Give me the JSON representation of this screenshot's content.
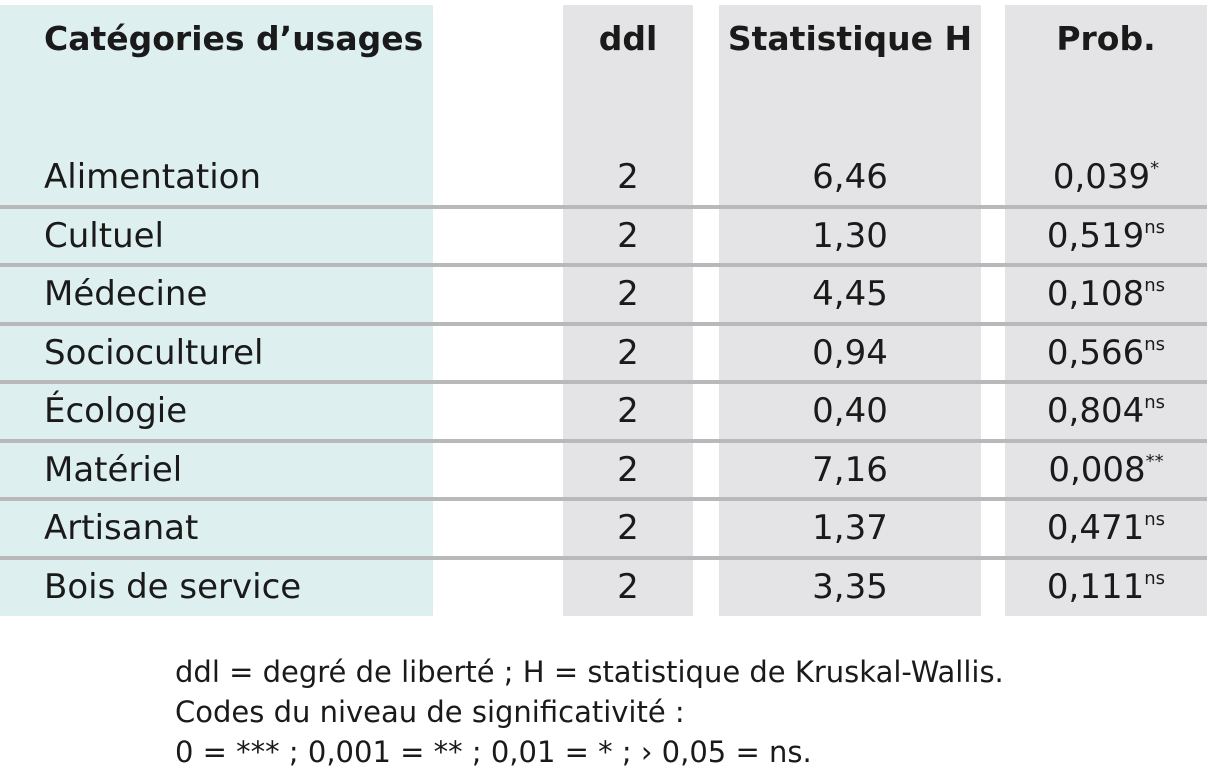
{
  "table": {
    "headers": {
      "category": "Catégories d’usages",
      "ddl": "ddl",
      "statistic": "Statistique H",
      "prob": "Prob."
    },
    "rows": [
      {
        "category": "Alimentation",
        "ddl": "2",
        "h": "6,46",
        "prob": "0,039",
        "sig": "*"
      },
      {
        "category": "Cultuel",
        "ddl": "2",
        "h": "1,30",
        "prob": "0,519",
        "sig": "ns"
      },
      {
        "category": "Médecine",
        "ddl": "2",
        "h": "4,45",
        "prob": "0,108",
        "sig": "ns"
      },
      {
        "category": "Socioculturel",
        "ddl": "2",
        "h": "0,94",
        "prob": "0,566",
        "sig": "ns"
      },
      {
        "category": "Écologie",
        "ddl": "2",
        "h": "0,40",
        "prob": "0,804",
        "sig": "ns"
      },
      {
        "category": "Matériel",
        "ddl": "2",
        "h": "7,16",
        "prob": "0,008",
        "sig": "**"
      },
      {
        "category": "Artisanat",
        "ddl": "2",
        "h": "1,37",
        "prob": "0,471",
        "sig": "ns"
      },
      {
        "category": "Bois de service",
        "ddl": "2",
        "h": "3,35",
        "prob": "0,111",
        "sig": "ns"
      }
    ]
  },
  "notes": {
    "line1": "ddl = degré de liberté ; H = statistique de Kruskal-Wallis.",
    "line2": "Codes du niveau de significativité :",
    "line3": "0 = *** ; 0,001 = ** ; 0,01 = * ; › 0,05 = ns."
  },
  "colors": {
    "category_band": "#deeff0",
    "column_band": "#e4e4e6",
    "separator": "#b9b9bc"
  }
}
